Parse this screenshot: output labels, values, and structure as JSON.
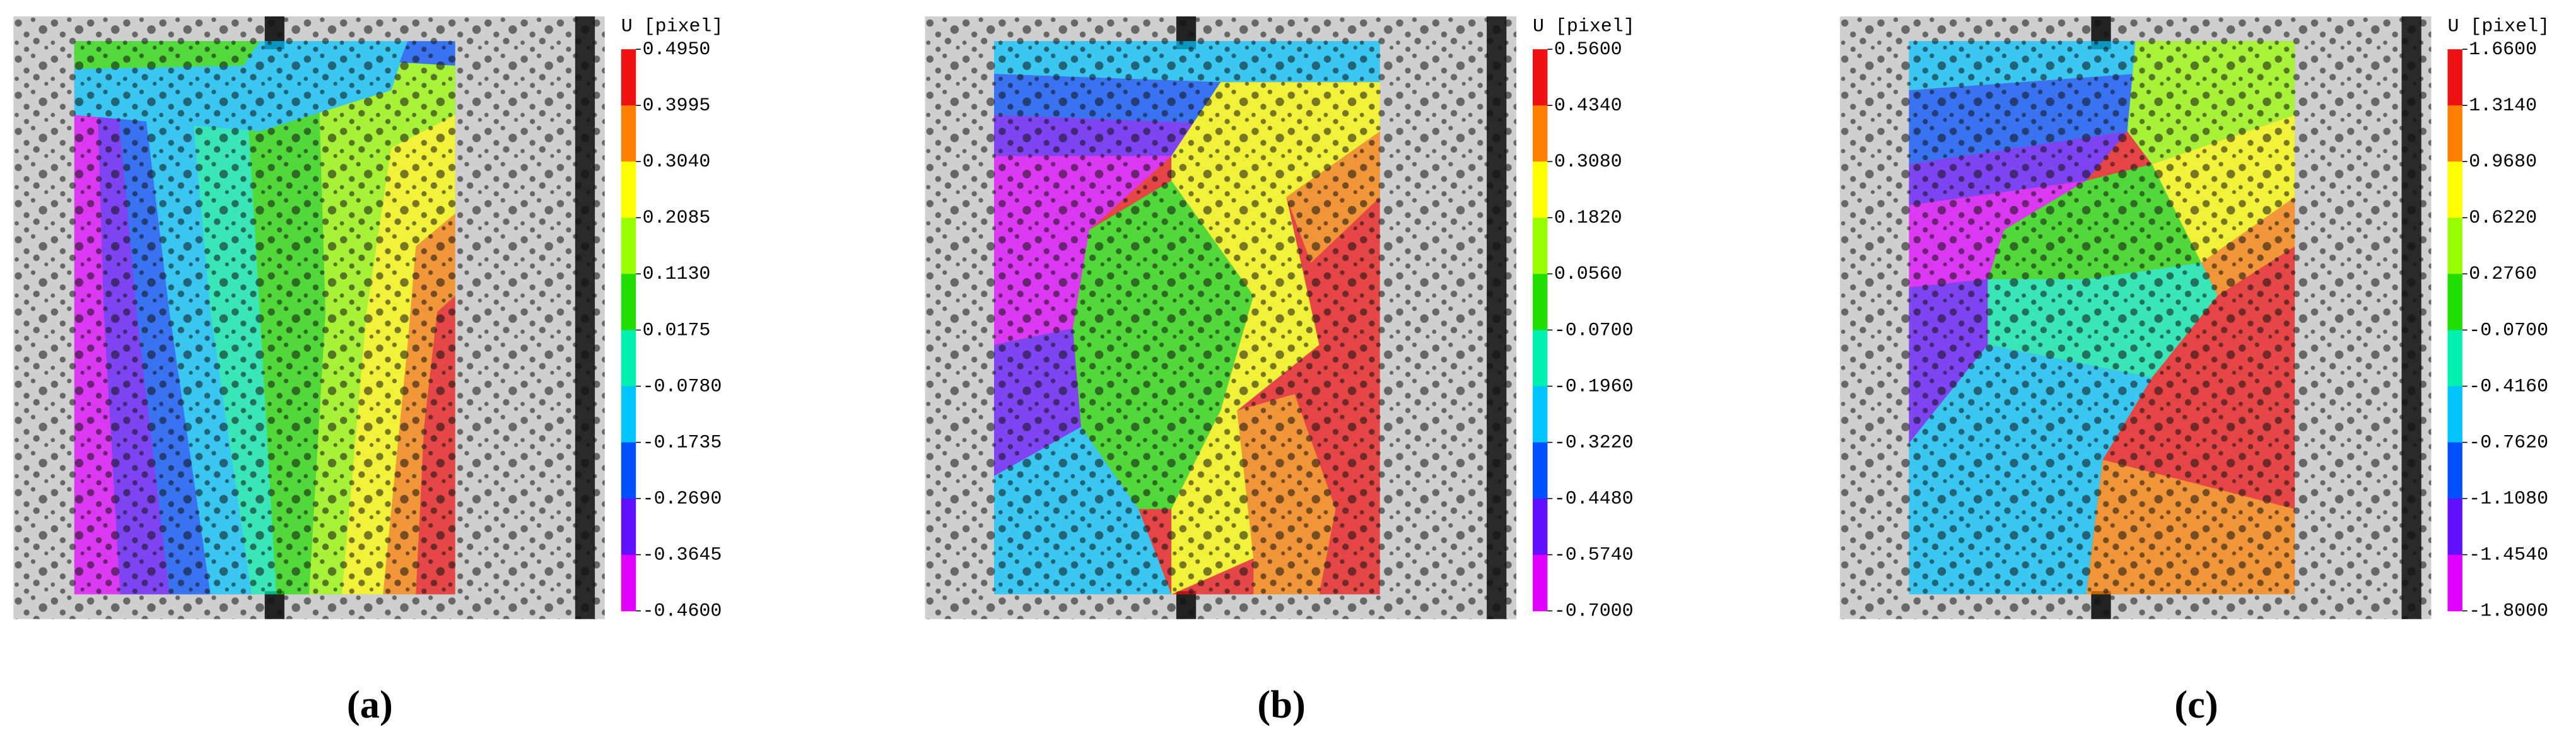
{
  "panels": [
    {
      "caption": "(a)",
      "colorbar": {
        "label": "U [pixel]",
        "ticks": [
          "0.4950",
          "0.3995",
          "0.3040",
          "0.2085",
          "0.1130",
          "0.0175",
          "-0.0780",
          "-0.1735",
          "-0.2690",
          "-0.3645",
          "-0.4600"
        ]
      }
    },
    {
      "caption": "(b)",
      "colorbar": {
        "label": "U [pixel]",
        "ticks": [
          "0.5600",
          "0.4340",
          "0.3080",
          "0.1820",
          "0.0560",
          "-0.0700",
          "-0.1960",
          "-0.3220",
          "-0.4480",
          "-0.5740",
          "-0.7000"
        ]
      }
    },
    {
      "caption": "(c)",
      "colorbar": {
        "label": "U [pixel]",
        "ticks": [
          "1.6600",
          "1.3140",
          "0.9680",
          "0.6220",
          "0.2760",
          "-0.0700",
          "-0.4160",
          "-0.7620",
          "-1.1080",
          "-1.4540",
          "-1.8000"
        ]
      }
    }
  ]
}
